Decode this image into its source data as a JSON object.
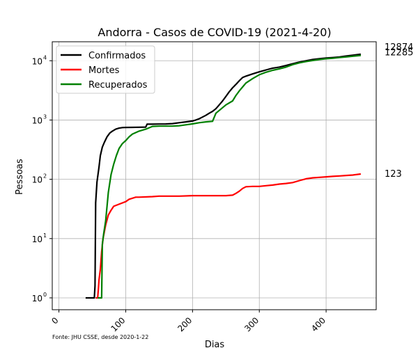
{
  "chart_data": {
    "type": "line",
    "title": "Andorra - Casos de COVID-19 (2021-4-20)",
    "xlabel": "Dias",
    "ylabel": "Pessoas",
    "source_note": "Fonte: JHU CSSE, desde 2020-1-22",
    "y_scale": "log",
    "xlim": [
      -10,
      475
    ],
    "ylim_log10": [
      -0.2,
      4.32
    ],
    "x_ticks": [
      0,
      100,
      200,
      300,
      400
    ],
    "x_tick_labels": [
      "0",
      "100",
      "200",
      "300",
      "400"
    ],
    "y_ticks_log10": [
      0,
      1,
      2,
      3,
      4
    ],
    "y_tick_labels": [
      "10",
      "10",
      "10",
      "10",
      "10"
    ],
    "y_tick_exponents": [
      "0",
      "1",
      "2",
      "3",
      "4"
    ],
    "grid": true,
    "legend_position": "top-left",
    "end_labels": [
      "12874",
      "12285",
      "123"
    ],
    "series": [
      {
        "name": "Confirmados",
        "color": "#000000",
        "points": [
          [
            40,
            1
          ],
          [
            53,
            1
          ],
          [
            54,
            1.6
          ],
          [
            55,
            40
          ],
          [
            57,
            90
          ],
          [
            60,
            160
          ],
          [
            62,
            250
          ],
          [
            65,
            350
          ],
          [
            68,
            420
          ],
          [
            72,
            520
          ],
          [
            76,
            600
          ],
          [
            80,
            650
          ],
          [
            85,
            700
          ],
          [
            90,
            730
          ],
          [
            95,
            745
          ],
          [
            100,
            750
          ],
          [
            110,
            752
          ],
          [
            120,
            755
          ],
          [
            130,
            760
          ],
          [
            132,
            850
          ],
          [
            140,
            850
          ],
          [
            150,
            855
          ],
          [
            160,
            858
          ],
          [
            170,
            870
          ],
          [
            180,
            900
          ],
          [
            190,
            930
          ],
          [
            200,
            960
          ],
          [
            205,
            1000
          ],
          [
            210,
            1050
          ],
          [
            215,
            1120
          ],
          [
            220,
            1200
          ],
          [
            225,
            1300
          ],
          [
            230,
            1400
          ],
          [
            235,
            1550
          ],
          [
            240,
            1800
          ],
          [
            245,
            2100
          ],
          [
            250,
            2500
          ],
          [
            255,
            3000
          ],
          [
            260,
            3500
          ],
          [
            265,
            4000
          ],
          [
            270,
            4600
          ],
          [
            275,
            5200
          ],
          [
            280,
            5500
          ],
          [
            290,
            6000
          ],
          [
            300,
            6500
          ],
          [
            310,
            7000
          ],
          [
            320,
            7500
          ],
          [
            330,
            7800
          ],
          [
            340,
            8300
          ],
          [
            350,
            8900
          ],
          [
            360,
            9500
          ],
          [
            370,
            10000
          ],
          [
            380,
            10500
          ],
          [
            390,
            10800
          ],
          [
            400,
            11100
          ],
          [
            410,
            11300
          ],
          [
            420,
            11600
          ],
          [
            430,
            12000
          ],
          [
            440,
            12400
          ],
          [
            452,
            12874
          ]
        ]
      },
      {
        "name": "Mortes",
        "color": "#ff0000",
        "points": [
          [
            55,
            1
          ],
          [
            58,
            1
          ],
          [
            59,
            1.4
          ],
          [
            60,
            2
          ],
          [
            62,
            3
          ],
          [
            64,
            6
          ],
          [
            66,
            10
          ],
          [
            70,
            17
          ],
          [
            74,
            25
          ],
          [
            78,
            30
          ],
          [
            82,
            35
          ],
          [
            90,
            38
          ],
          [
            100,
            42
          ],
          [
            105,
            46
          ],
          [
            110,
            48
          ],
          [
            115,
            50
          ],
          [
            120,
            50
          ],
          [
            140,
            51
          ],
          [
            150,
            52
          ],
          [
            180,
            52
          ],
          [
            200,
            53
          ],
          [
            250,
            53
          ],
          [
            260,
            54
          ],
          [
            265,
            58
          ],
          [
            270,
            63
          ],
          [
            275,
            70
          ],
          [
            280,
            75
          ],
          [
            290,
            76
          ],
          [
            300,
            76
          ],
          [
            310,
            78
          ],
          [
            320,
            80
          ],
          [
            330,
            83
          ],
          [
            340,
            85
          ],
          [
            350,
            88
          ],
          [
            360,
            95
          ],
          [
            370,
            102
          ],
          [
            380,
            106
          ],
          [
            390,
            108
          ],
          [
            400,
            110
          ],
          [
            410,
            112
          ],
          [
            420,
            114
          ],
          [
            430,
            116
          ],
          [
            440,
            118
          ],
          [
            452,
            123
          ]
        ]
      },
      {
        "name": "Recuperados",
        "color": "#008000",
        "points": [
          [
            58,
            1
          ],
          [
            64,
            1
          ],
          [
            65,
            8
          ],
          [
            67,
            12
          ],
          [
            70,
            20
          ],
          [
            74,
            60
          ],
          [
            78,
            120
          ],
          [
            82,
            180
          ],
          [
            86,
            250
          ],
          [
            90,
            330
          ],
          [
            95,
            400
          ],
          [
            100,
            450
          ],
          [
            105,
            520
          ],
          [
            110,
            580
          ],
          [
            120,
            650
          ],
          [
            130,
            700
          ],
          [
            140,
            780
          ],
          [
            150,
            790
          ],
          [
            160,
            790
          ],
          [
            170,
            790
          ],
          [
            180,
            800
          ],
          [
            190,
            830
          ],
          [
            200,
            860
          ],
          [
            210,
            900
          ],
          [
            220,
            930
          ],
          [
            230,
            950
          ],
          [
            235,
            1300
          ],
          [
            240,
            1450
          ],
          [
            250,
            1800
          ],
          [
            260,
            2100
          ],
          [
            265,
            2600
          ],
          [
            270,
            3100
          ],
          [
            275,
            3600
          ],
          [
            280,
            4200
          ],
          [
            290,
            5000
          ],
          [
            300,
            5800
          ],
          [
            310,
            6400
          ],
          [
            320,
            6900
          ],
          [
            330,
            7300
          ],
          [
            340,
            7800
          ],
          [
            350,
            8600
          ],
          [
            360,
            9200
          ],
          [
            370,
            9700
          ],
          [
            380,
            10100
          ],
          [
            390,
            10500
          ],
          [
            400,
            10800
          ],
          [
            410,
            11000
          ],
          [
            420,
            11300
          ],
          [
            430,
            11600
          ],
          [
            440,
            11900
          ],
          [
            452,
            12285
          ]
        ]
      }
    ]
  }
}
